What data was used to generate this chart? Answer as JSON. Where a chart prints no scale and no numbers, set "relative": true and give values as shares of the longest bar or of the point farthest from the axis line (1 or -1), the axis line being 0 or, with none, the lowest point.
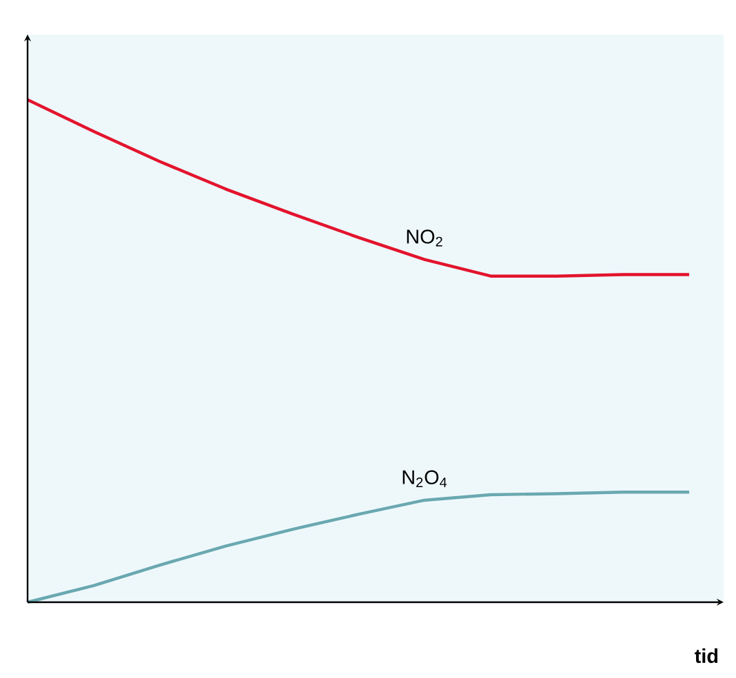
{
  "chart_data": {
    "type": "line",
    "relative": true,
    "xlabel": "tid",
    "categories": [
      null,
      null,
      null,
      null,
      null,
      null,
      null,
      null,
      null,
      null,
      null
    ],
    "series": [
      {
        "name": "NO$_{2}$",
        "color": "#e3142d",
        "values": [
          1.0,
          0.937,
          0.877,
          0.822,
          0.773,
          0.726,
          0.682,
          0.649,
          0.649,
          0.652,
          0.652
        ]
      },
      {
        "name": "N$_{2}$O$_{4}$",
        "color": "#6aa8b0",
        "values": [
          0,
          0.033,
          0.074,
          0.112,
          0.145,
          0.175,
          0.203,
          0.214,
          0.216,
          0.219,
          0.219
        ]
      }
    ],
    "legend": false,
    "marker": "none",
    "line_style": "solid"
  }
}
